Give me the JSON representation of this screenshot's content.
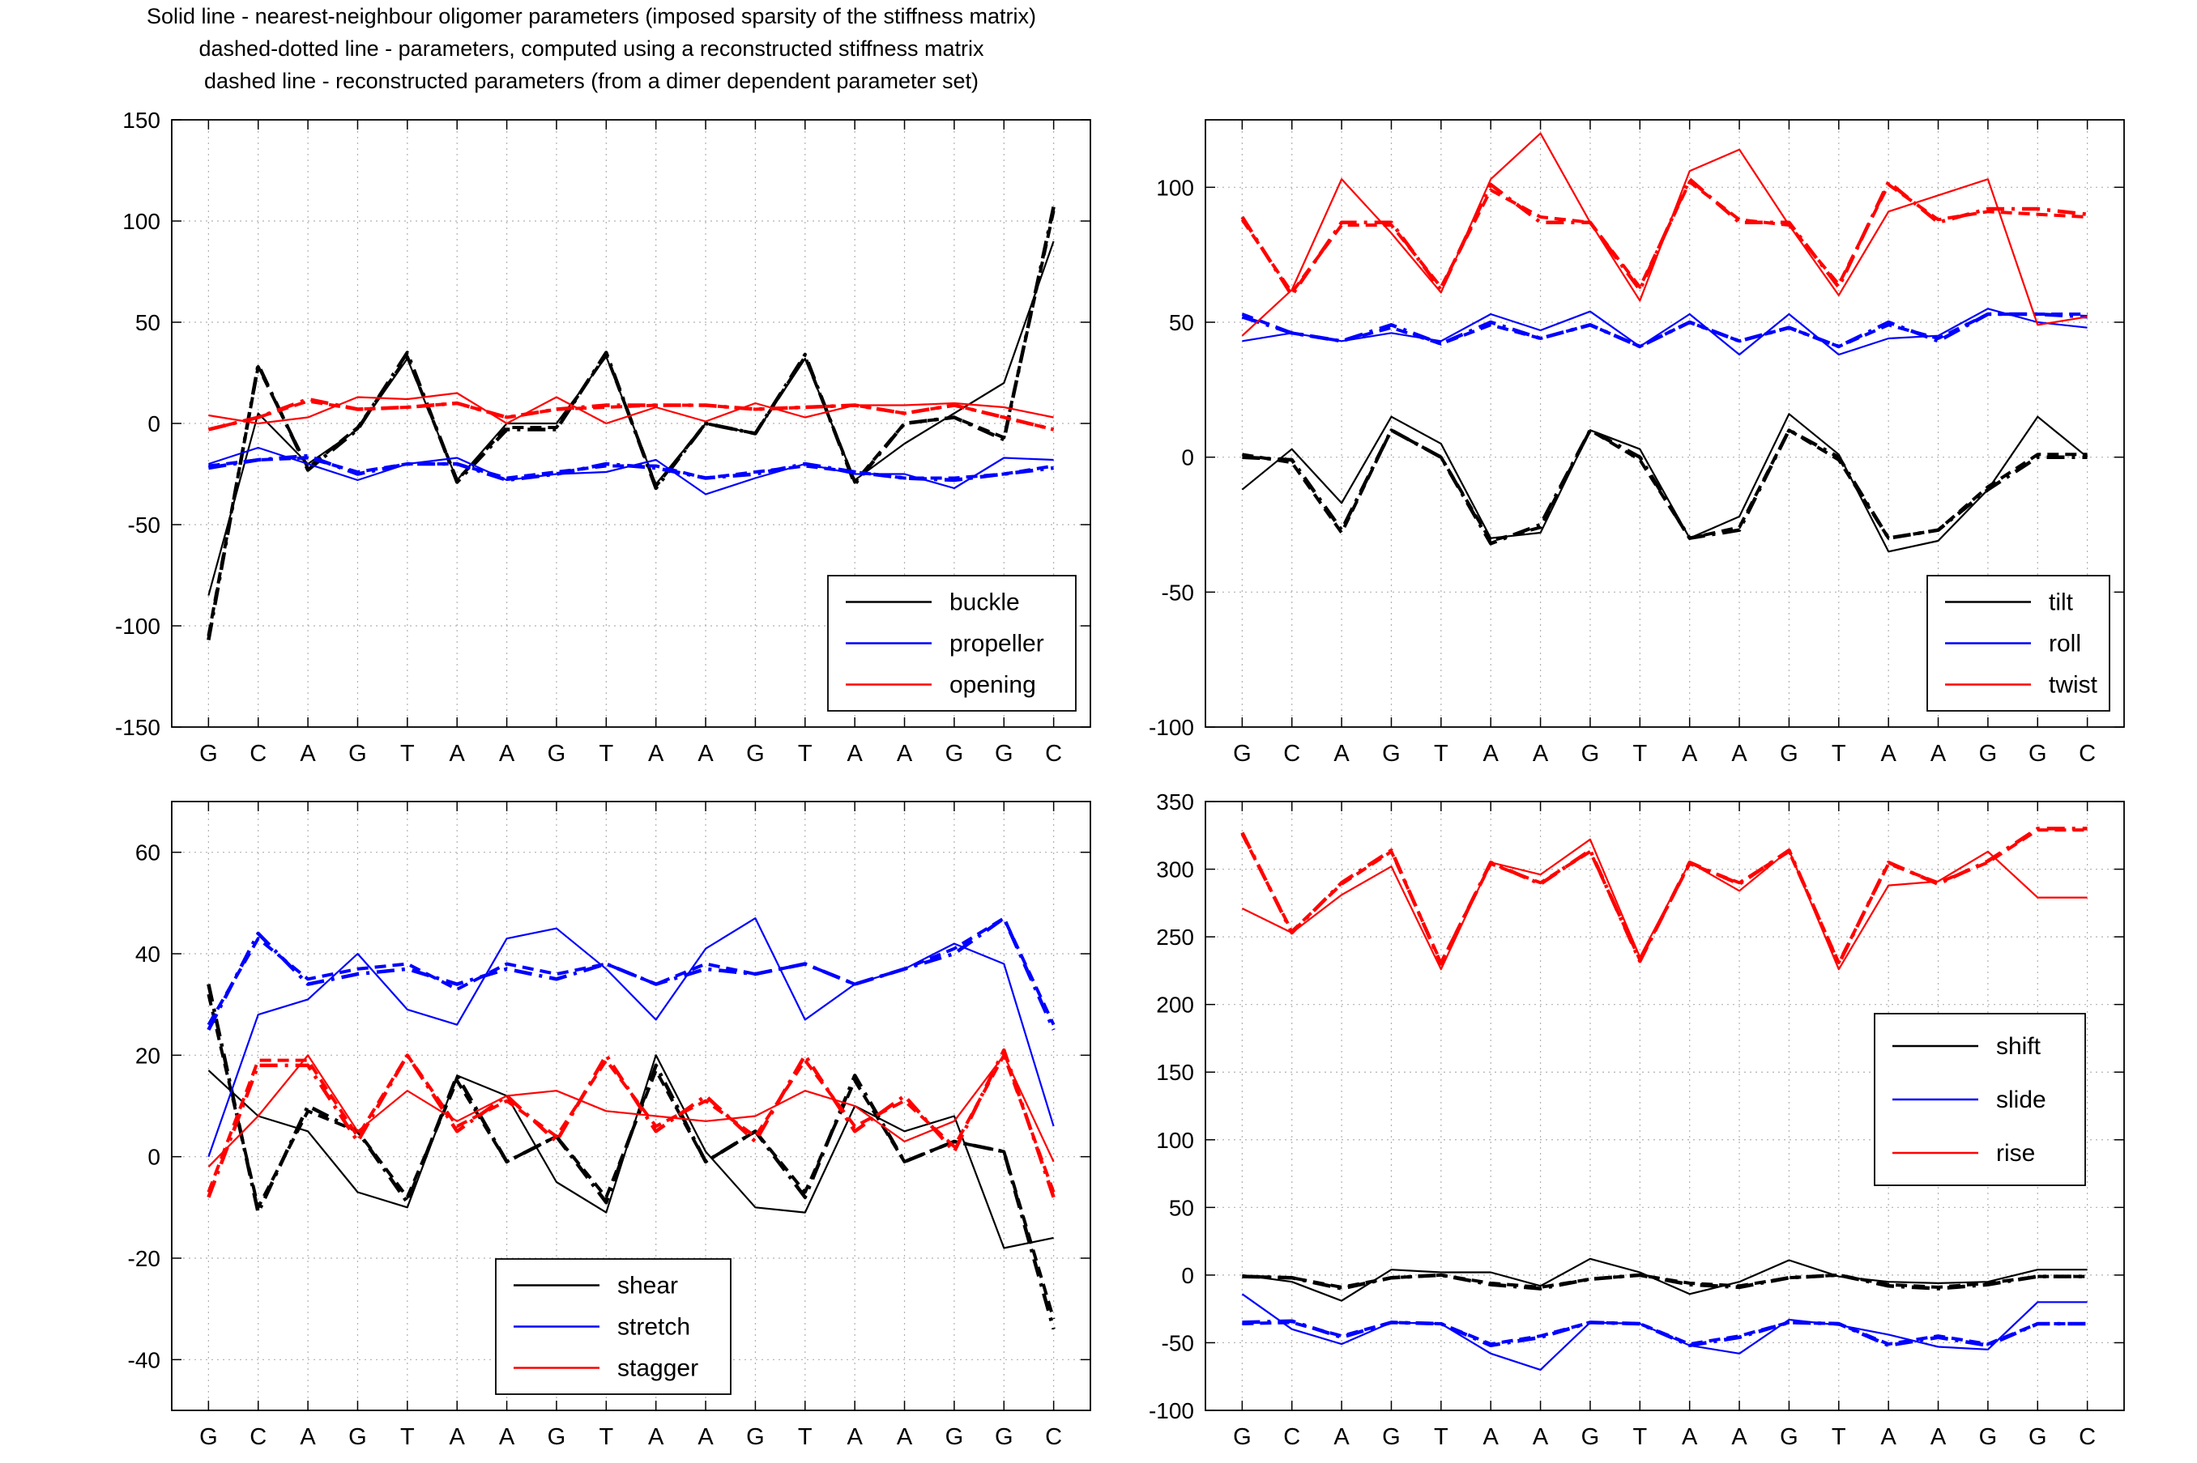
{
  "figure": {
    "title_lines": [
      "Solid line - nearest-neighbour oligomer parameters (imposed sparsity of the stiffness matrix)",
      "dashed-dotted line - parameters, computed using a reconstructed stiffness matrix",
      "dashed line - reconstructed parameters (from a dimer dependent parameter set)"
    ]
  },
  "chart_data": [
    {
      "type": "line",
      "panel": "top-left",
      "categories": [
        "G",
        "C",
        "A",
        "G",
        "T",
        "A",
        "A",
        "G",
        "T",
        "A",
        "A",
        "G",
        "T",
        "A",
        "A",
        "G",
        "G",
        "C"
      ],
      "ylim": [
        -150,
        150
      ],
      "yticks": [
        -150,
        -100,
        -50,
        0,
        50,
        100,
        150
      ],
      "grid": true,
      "legend_position": "bottom-right",
      "series": [
        {
          "name": "buckle",
          "color": "#000000",
          "style": "solid",
          "values": [
            -85,
            5,
            -20,
            -3,
            32,
            -28,
            0,
            0,
            33,
            -30,
            0,
            -5,
            32,
            -28,
            -10,
            5,
            20,
            90
          ]
        },
        {
          "name": "",
          "color": "#000000",
          "style": "dashdot",
          "values": [
            -107,
            29,
            -23,
            -3,
            35,
            -29,
            -3,
            -3,
            35,
            -32,
            0,
            -5,
            34,
            -30,
            0,
            3,
            -8,
            107
          ]
        },
        {
          "name": "",
          "color": "#000000",
          "style": "dashed",
          "values": [
            -105,
            28,
            -22,
            -2,
            33,
            -28,
            -2,
            -2,
            34,
            -31,
            0,
            -5,
            33,
            -29,
            0,
            3,
            -7,
            105
          ]
        },
        {
          "name": "propeller",
          "color": "#0000ff",
          "style": "solid",
          "values": [
            -20,
            -12,
            -20,
            -28,
            -20,
            -17,
            -28,
            -25,
            -24,
            -18,
            -35,
            -27,
            -20,
            -25,
            -25,
            -32,
            -17,
            -18
          ]
        },
        {
          "name": "",
          "color": "#0000ff",
          "style": "dashdot",
          "values": [
            -22,
            -18,
            -16,
            -25,
            -20,
            -20,
            -28,
            -25,
            -20,
            -22,
            -27,
            -25,
            -20,
            -24,
            -27,
            -28,
            -25,
            -22
          ]
        },
        {
          "name": "",
          "color": "#0000ff",
          "style": "dashed",
          "values": [
            -21,
            -18,
            -17,
            -24,
            -20,
            -20,
            -27,
            -24,
            -21,
            -21,
            -27,
            -24,
            -21,
            -24,
            -27,
            -27,
            -25,
            -21
          ]
        },
        {
          "name": "opening",
          "color": "#ff0000",
          "style": "solid",
          "values": [
            4,
            0,
            3,
            13,
            12,
            15,
            0,
            13,
            0,
            8,
            1,
            10,
            3,
            9,
            9,
            10,
            8,
            3
          ]
        },
        {
          "name": "",
          "color": "#ff0000",
          "style": "dashdot",
          "values": [
            -3,
            3,
            12,
            7,
            8,
            10,
            3,
            7,
            9,
            9,
            9,
            7,
            8,
            9,
            5,
            9,
            3,
            -3
          ]
        },
        {
          "name": "",
          "color": "#ff0000",
          "style": "dashed",
          "values": [
            -3,
            3,
            11,
            7,
            8,
            10,
            3,
            7,
            8,
            9,
            9,
            7,
            8,
            9,
            5,
            9,
            3,
            -3
          ]
        }
      ]
    },
    {
      "type": "line",
      "panel": "top-right",
      "categories": [
        "G",
        "C",
        "A",
        "G",
        "T",
        "A",
        "A",
        "G",
        "T",
        "A",
        "A",
        "G",
        "T",
        "A",
        "A",
        "G",
        "G",
        "C"
      ],
      "ylim": [
        -100,
        125
      ],
      "yticks": [
        -100,
        -50,
        0,
        50,
        100
      ],
      "grid": true,
      "legend_position": "bottom-right",
      "series": [
        {
          "name": "tilt",
          "color": "#000000",
          "style": "solid",
          "values": [
            -12,
            3,
            -17,
            15,
            5,
            -30,
            -28,
            10,
            3,
            -30,
            -22,
            16,
            1,
            -35,
            -31,
            -12,
            15,
            0
          ]
        },
        {
          "name": "",
          "color": "#000000",
          "style": "dashdot",
          "values": [
            0,
            -1,
            -27,
            10,
            0,
            -32,
            -25,
            10,
            0,
            -30,
            -27,
            10,
            0,
            -30,
            -27,
            -12,
            0,
            0
          ]
        },
        {
          "name": "",
          "color": "#000000",
          "style": "dashed",
          "values": [
            1,
            -2,
            -28,
            10,
            0,
            -31,
            -26,
            10,
            -1,
            -30,
            -26,
            10,
            -1,
            -30,
            -27,
            -11,
            1,
            1
          ]
        },
        {
          "name": "roll",
          "color": "#0000ff",
          "style": "solid",
          "values": [
            43,
            46,
            43,
            46,
            43,
            53,
            47,
            54,
            41,
            53,
            38,
            53,
            38,
            44,
            45,
            55,
            50,
            48
          ]
        },
        {
          "name": "",
          "color": "#0000ff",
          "style": "dashdot",
          "values": [
            52,
            46,
            43,
            49,
            42,
            50,
            44,
            49,
            41,
            50,
            43,
            48,
            41,
            50,
            43,
            53,
            53,
            52
          ]
        },
        {
          "name": "",
          "color": "#0000ff",
          "style": "dashed",
          "values": [
            53,
            46,
            43,
            48,
            42,
            49,
            44,
            49,
            41,
            50,
            43,
            48,
            41,
            49,
            44,
            53,
            53,
            53
          ]
        },
        {
          "name": "twist",
          "color": "#ff0000",
          "style": "solid",
          "values": [
            45,
            62,
            103,
            83,
            61,
            103,
            120,
            87,
            58,
            106,
            114,
            86,
            60,
            91,
            97,
            103,
            49,
            52
          ]
        },
        {
          "name": "",
          "color": "#ff0000",
          "style": "dashdot",
          "values": [
            89,
            60,
            87,
            87,
            62,
            101,
            87,
            87,
            62,
            103,
            87,
            87,
            63,
            102,
            87,
            92,
            92,
            90
          ]
        },
        {
          "name": "",
          "color": "#ff0000",
          "style": "dashed",
          "values": [
            88,
            61,
            86,
            86,
            63,
            99,
            89,
            87,
            63,
            102,
            88,
            86,
            64,
            101,
            88,
            91,
            90,
            89
          ]
        }
      ]
    },
    {
      "type": "line",
      "panel": "bottom-left",
      "categories": [
        "G",
        "C",
        "A",
        "G",
        "T",
        "A",
        "A",
        "G",
        "T",
        "A",
        "A",
        "G",
        "T",
        "A",
        "A",
        "G",
        "G",
        "C"
      ],
      "ylim": [
        -50,
        70
      ],
      "yticks": [
        -40,
        -20,
        0,
        20,
        40,
        60
      ],
      "grid": true,
      "legend_position": "bottom-center",
      "series": [
        {
          "name": "shear",
          "color": "#000000",
          "style": "solid",
          "values": [
            17,
            8,
            5,
            -7,
            -10,
            16,
            12,
            -5,
            -11,
            20,
            1,
            -10,
            -11,
            10,
            5,
            8,
            -18,
            -16
          ]
        },
        {
          "name": "",
          "color": "#000000",
          "style": "dashdot",
          "values": [
            34,
            -11,
            10,
            5,
            -9,
            16,
            -1,
            4,
            -9,
            18,
            -1,
            5,
            -8,
            16,
            -1,
            3,
            1,
            -34
          ]
        },
        {
          "name": "",
          "color": "#000000",
          "style": "dashed",
          "values": [
            32,
            -10,
            9,
            5,
            -8,
            15,
            -1,
            4,
            -8,
            17,
            -1,
            5,
            -7,
            15,
            -1,
            3,
            1,
            -32
          ]
        },
        {
          "name": "stretch",
          "color": "#0000ff",
          "style": "solid",
          "values": [
            0,
            28,
            31,
            40,
            29,
            26,
            43,
            45,
            37,
            27,
            41,
            47,
            27,
            34,
            37,
            42,
            38,
            6
          ]
        },
        {
          "name": "",
          "color": "#0000ff",
          "style": "dashdot",
          "values": [
            25,
            44,
            34,
            36,
            37,
            34,
            37,
            35,
            38,
            34,
            37,
            36,
            38,
            34,
            37,
            40,
            47,
            25
          ]
        },
        {
          "name": "",
          "color": "#0000ff",
          "style": "dashed",
          "values": [
            26,
            43,
            35,
            37,
            38,
            33,
            38,
            36,
            38,
            34,
            38,
            36,
            38,
            34,
            37,
            41,
            47,
            26
          ]
        },
        {
          "name": "stagger",
          "color": "#ff0000",
          "style": "solid",
          "values": [
            -2,
            8,
            20,
            5,
            13,
            7,
            12,
            13,
            9,
            8,
            7,
            8,
            13,
            10,
            3,
            7,
            20,
            -1
          ]
        },
        {
          "name": "",
          "color": "#ff0000",
          "style": "dashdot",
          "values": [
            -8,
            18,
            18,
            3,
            20,
            5,
            12,
            3,
            20,
            5,
            12,
            3,
            20,
            5,
            12,
            1,
            21,
            -8
          ]
        },
        {
          "name": "",
          "color": "#ff0000",
          "style": "dashed",
          "values": [
            -7,
            19,
            19,
            4,
            20,
            6,
            11,
            4,
            19,
            6,
            11,
            4,
            19,
            6,
            11,
            2,
            20,
            -7
          ]
        }
      ]
    },
    {
      "type": "line",
      "panel": "bottom-right",
      "categories": [
        "G",
        "C",
        "A",
        "G",
        "T",
        "A",
        "A",
        "G",
        "T",
        "A",
        "A",
        "G",
        "T",
        "A",
        "A",
        "G",
        "G",
        "C"
      ],
      "ylim": [
        -100,
        350
      ],
      "yticks": [
        -100,
        -50,
        0,
        50,
        100,
        150,
        200,
        250,
        300,
        350
      ],
      "grid": true,
      "legend_position": "middle-right",
      "series": [
        {
          "name": "shift",
          "color": "#000000",
          "style": "solid",
          "values": [
            0,
            -5,
            -19,
            4,
            2,
            2,
            -8,
            12,
            2,
            -14,
            -5,
            11,
            -1,
            -5,
            -6,
            -5,
            4,
            4
          ]
        },
        {
          "name": "",
          "color": "#000000",
          "style": "dashdot",
          "values": [
            -1,
            -2,
            -10,
            -2,
            0,
            -7,
            -10,
            -3,
            0,
            -7,
            -9,
            -2,
            0,
            -8,
            -10,
            -7,
            -1,
            -1
          ]
        },
        {
          "name": "",
          "color": "#000000",
          "style": "dashed",
          "values": [
            -1,
            -2,
            -9,
            -2,
            0,
            -6,
            -9,
            -3,
            0,
            -6,
            -8,
            -2,
            0,
            -7,
            -9,
            -6,
            -1,
            -1
          ]
        },
        {
          "name": "slide",
          "color": "#0000ff",
          "style": "solid",
          "values": [
            -14,
            -40,
            -51,
            -35,
            -36,
            -58,
            -70,
            -35,
            -36,
            -52,
            -58,
            -33,
            -37,
            -44,
            -53,
            -55,
            -20,
            -20
          ]
        },
        {
          "name": "",
          "color": "#0000ff",
          "style": "dashdot",
          "values": [
            -35,
            -34,
            -46,
            -35,
            -36,
            -52,
            -46,
            -35,
            -36,
            -52,
            -46,
            -35,
            -36,
            -52,
            -46,
            -52,
            -36,
            -36
          ]
        },
        {
          "name": "",
          "color": "#0000ff",
          "style": "dashed",
          "values": [
            -36,
            -35,
            -45,
            -35,
            -36,
            -51,
            -45,
            -35,
            -36,
            -51,
            -45,
            -35,
            -36,
            -51,
            -45,
            -51,
            -36,
            -36
          ]
        },
        {
          "name": "rise",
          "color": "#ff0000",
          "style": "solid",
          "values": [
            271,
            253,
            281,
            302,
            226,
            305,
            296,
            322,
            235,
            305,
            284,
            314,
            226,
            288,
            291,
            313,
            279,
            279
          ]
        },
        {
          "name": "",
          "color": "#ff0000",
          "style": "dashdot",
          "values": [
            327,
            253,
            290,
            314,
            230,
            305,
            289,
            314,
            232,
            305,
            289,
            314,
            230,
            305,
            289,
            306,
            330,
            330
          ]
        },
        {
          "name": "",
          "color": "#ff0000",
          "style": "dashed",
          "values": [
            326,
            254,
            289,
            313,
            231,
            304,
            290,
            313,
            233,
            304,
            290,
            313,
            231,
            304,
            290,
            305,
            329,
            329
          ]
        }
      ]
    }
  ]
}
